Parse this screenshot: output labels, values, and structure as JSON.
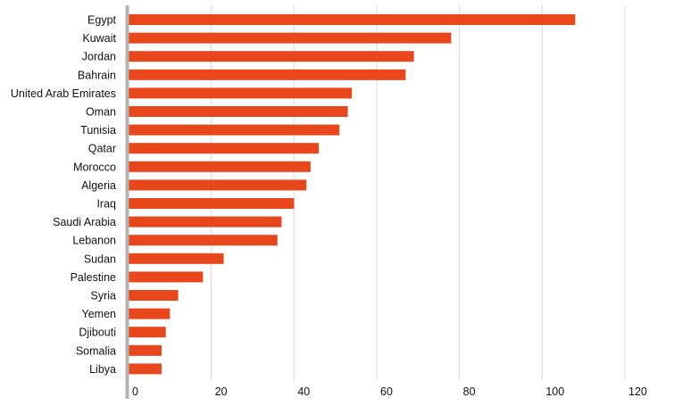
{
  "chart_data": {
    "type": "bar",
    "orientation": "horizontal",
    "categories": [
      "Egypt",
      "Kuwait",
      "Jordan",
      "Bahrain",
      "United Arab Emirates",
      "Oman",
      "Tunisia",
      "Qatar",
      "Morocco",
      "Algeria",
      "Iraq",
      "Saudi Arabia",
      "Lebanon",
      "Sudan",
      "Palestine",
      "Syria",
      "Yemen",
      "Djibouti",
      "Somalia",
      "Libya"
    ],
    "values": [
      108,
      78,
      69,
      67,
      54,
      53,
      51,
      46,
      44,
      43,
      40,
      37,
      36,
      23,
      18,
      12,
      10,
      9,
      8,
      8
    ],
    "xlim": [
      0,
      120
    ],
    "xticks": [
      0,
      20,
      40,
      60,
      80,
      100,
      120
    ],
    "grid": true,
    "bar_color": "#e8461b",
    "grid_color": "#d9d9d9",
    "axis_color": "#b3b3b3",
    "title": "",
    "xlabel": "",
    "ylabel": ""
  }
}
